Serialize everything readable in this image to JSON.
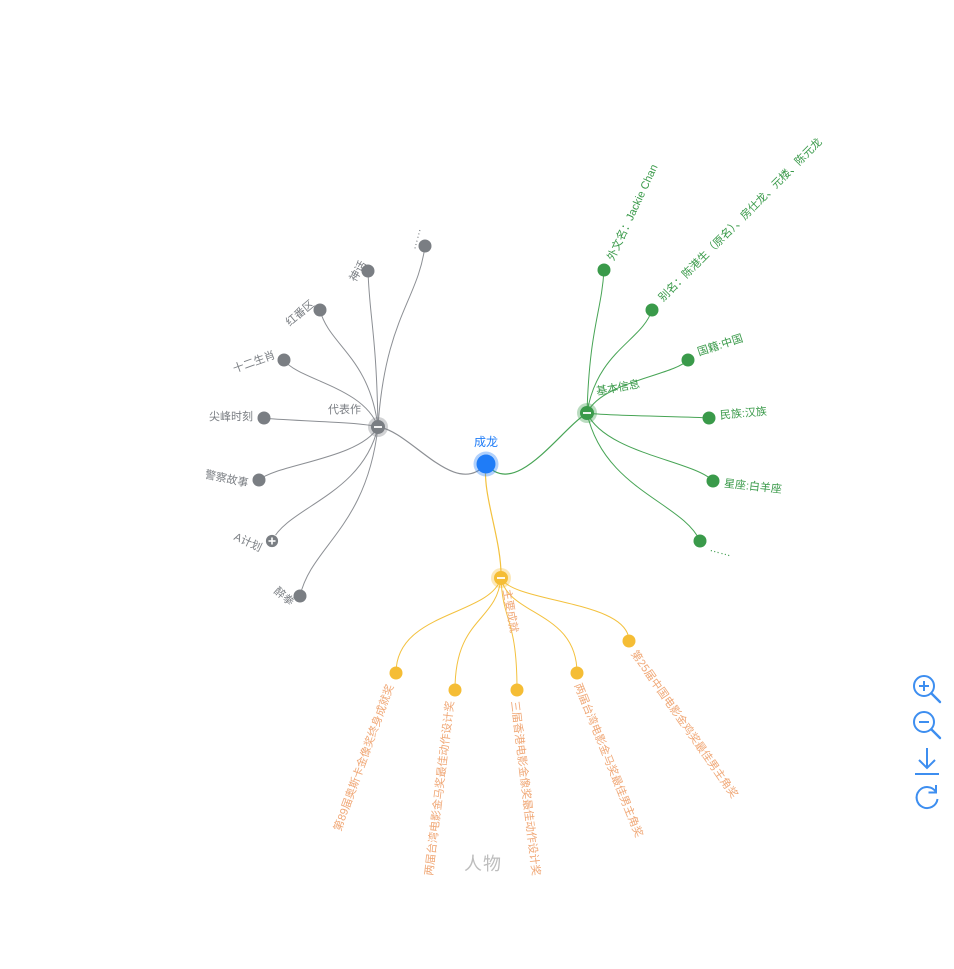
{
  "root": {
    "label": "成龙",
    "color": "#1f7cf7"
  },
  "branches": [
    {
      "id": "works",
      "label": "代表作",
      "color": "#7a7e83",
      "lineColor": "#8c8f94",
      "expanded": true,
      "children": [
        {
          "label": "……",
          "collapsed": false
        },
        {
          "label": "神话",
          "collapsed": false
        },
        {
          "label": "红番区",
          "collapsed": false
        },
        {
          "label": "十二生肖",
          "collapsed": false
        },
        {
          "label": "尖峰时刻",
          "collapsed": false
        },
        {
          "label": "警察故事",
          "collapsed": false
        },
        {
          "label": "A计划",
          "collapsed": true
        },
        {
          "label": "醉拳",
          "collapsed": false
        }
      ]
    },
    {
      "id": "info",
      "label": "基本信息",
      "color": "#3a9a4a",
      "lineColor": "#47a455",
      "expanded": true,
      "children": [
        {
          "label": "外文名：Jackie Chan"
        },
        {
          "label": "别名：陈港生（原名）、房仕龙、元楼、陈元龙"
        },
        {
          "label": "国籍:中国"
        },
        {
          "label": "民族:汉族"
        },
        {
          "label": "星座:白羊座"
        },
        {
          "label": "……"
        }
      ]
    },
    {
      "id": "awards",
      "label": "主要成就",
      "color": "#f5bd35",
      "lineColor": "#f3c13e",
      "textColor": "#f0a877",
      "expanded": true,
      "children": [
        {
          "label": "第89届奥斯卡金像奖终身成就奖"
        },
        {
          "label": "两届台湾电影金马奖最佳动作设计奖"
        },
        {
          "label": "三届香港电影金像奖最佳动作设计奖"
        },
        {
          "label": "两届台湾电影金马奖最佳男主角奖"
        },
        {
          "label": "第25届中国电影金鸡奖最佳男主角奖"
        }
      ]
    }
  ],
  "caption": "人物",
  "toolbar": {
    "accent": "#3d8ef0",
    "items": [
      {
        "id": "zoom-in",
        "icon": "zoom-in-icon"
      },
      {
        "id": "zoom-out",
        "icon": "zoom-out-icon"
      },
      {
        "id": "download",
        "icon": "download-icon"
      },
      {
        "id": "refresh",
        "icon": "refresh-icon"
      }
    ]
  }
}
